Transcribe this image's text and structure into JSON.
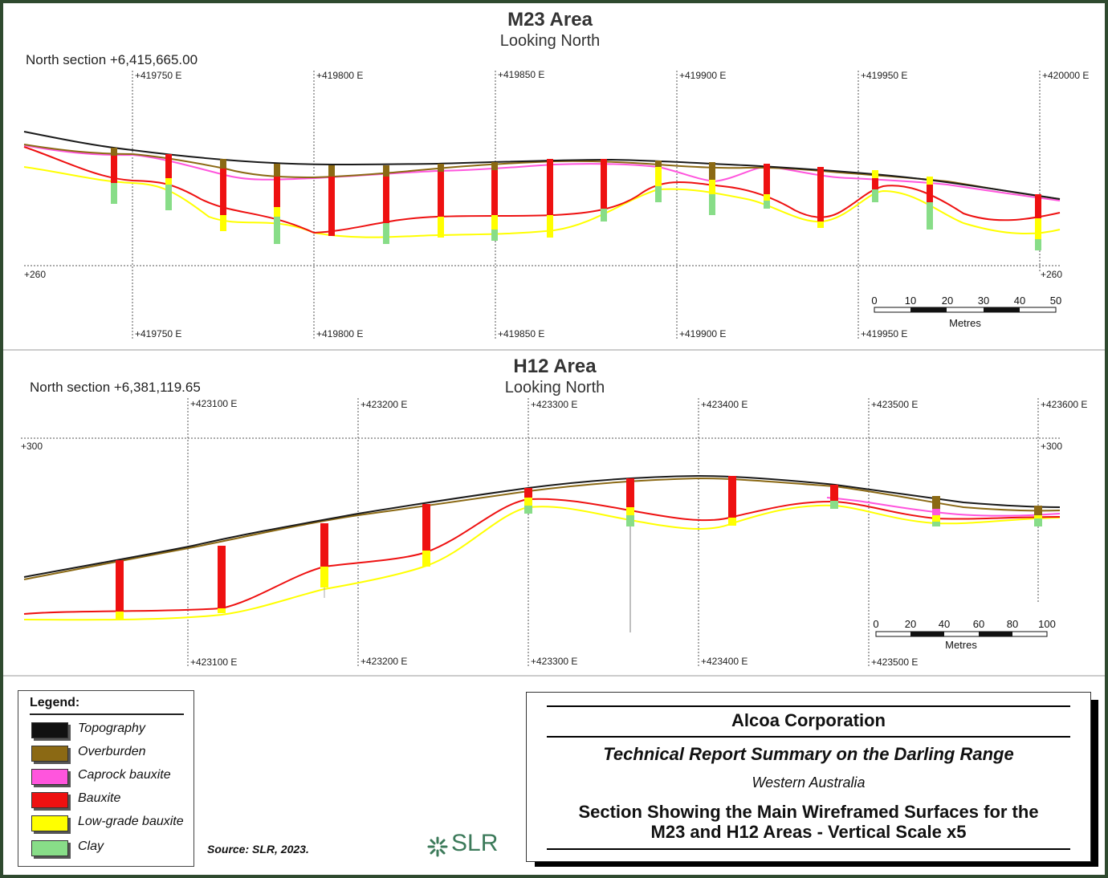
{
  "colors": {
    "topography": "#1a1a1a",
    "overburden": "#8b6914",
    "caprock": "#ff55dd",
    "bauxite": "#ee1111",
    "low_grade": "#ffff00",
    "clay": "#88dd88",
    "border": "#2f4a2f",
    "slr_green": "#3c7a5a"
  },
  "m23": {
    "title": "M23 Area",
    "subtitle": "Looking North",
    "section_label": "North section +6,415,665.00",
    "top_grid_labels": [
      "+419750 E",
      "+419800 E",
      "+419850 E",
      "+419900 E",
      "+419950 E",
      "+420000 E"
    ],
    "bottom_grid_labels": [
      "+419750 E",
      "+419800 E",
      "+419850 E",
      "+419900 E",
      "+419950 E"
    ],
    "elev_left": "+260",
    "elev_right": "+260",
    "scale_ticks": [
      "0",
      "10",
      "20",
      "30",
      "40",
      "50"
    ],
    "scale_unit": "Metres"
  },
  "h12": {
    "title": "H12 Area",
    "subtitle": "Looking North",
    "section_label": "North section +6,381,119.65",
    "top_grid_labels": [
      "+423100 E",
      "+423200 E",
      "+423300 E",
      "+423400 E",
      "+423500 E",
      "+423600 E"
    ],
    "bottom_grid_labels": [
      "+423100 E",
      "+423200 E",
      "+423300 E",
      "+423400 E",
      "+423500 E"
    ],
    "elev_left": "+300",
    "elev_right": "+300",
    "scale_ticks": [
      "0",
      "20",
      "40",
      "60",
      "80",
      "100"
    ],
    "scale_unit": "Metres"
  },
  "legend": {
    "title": "Legend:",
    "items": [
      {
        "label": "Topography",
        "color": "#111111"
      },
      {
        "label": "Overburden",
        "color": "#8b6914"
      },
      {
        "label": "Caprock bauxite",
        "color": "#ff55dd"
      },
      {
        "label": "Bauxite",
        "color": "#ee1111"
      },
      {
        "label": "Low-grade bauxite",
        "color": "#ffff00"
      },
      {
        "label": "Clay",
        "color": "#88dd88"
      }
    ]
  },
  "source": "Source:  SLR, 2023.",
  "logo": "SLR",
  "title_block": {
    "company": "Alcoa Corporation",
    "report": "Technical Report Summary on the Darling Range",
    "region": "Western Australia",
    "caption_line1": "Section Showing the Main Wireframed Surfaces for the",
    "caption_line2": "M23 and H12 Areas - Vertical Scale x5"
  }
}
